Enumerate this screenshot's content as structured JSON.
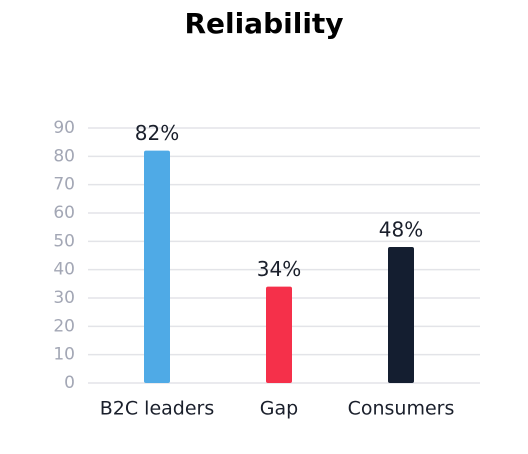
{
  "chart_data": {
    "type": "bar",
    "title": "Reliability",
    "categories": [
      "B2C leaders",
      "Gap",
      "Consumers"
    ],
    "values": [
      82,
      34,
      48
    ],
    "value_labels": [
      "82%",
      "34%",
      "48%"
    ],
    "colors": [
      "#4faae6",
      "#f5304a",
      "#141e30"
    ],
    "ylim": [
      0,
      90
    ],
    "yticks": [
      0,
      10,
      20,
      30,
      40,
      50,
      60,
      70,
      80,
      90
    ],
    "grid": true
  }
}
